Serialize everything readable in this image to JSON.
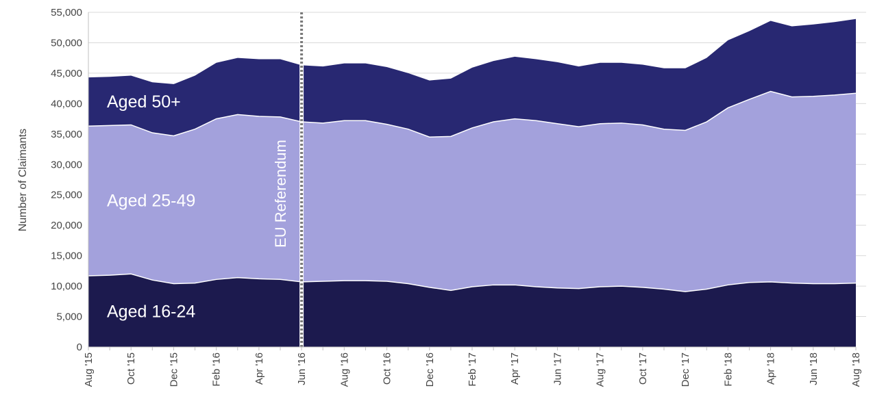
{
  "chart_data": {
    "type": "area",
    "stacked": true,
    "title": "",
    "xlabel": "",
    "ylabel": "Number of Claimants",
    "ylim": [
      0,
      55000
    ],
    "yticks": [
      0,
      5000,
      10000,
      15000,
      20000,
      25000,
      30000,
      35000,
      40000,
      45000,
      50000,
      55000
    ],
    "ytick_labels": [
      "0",
      "5,000",
      "10,000",
      "15,000",
      "20,000",
      "25,000",
      "30,000",
      "35,000",
      "40,000",
      "45,000",
      "50,000",
      "55,000"
    ],
    "x": [
      "Aug '15",
      "Sep '15",
      "Oct '15",
      "Nov '15",
      "Dec '15",
      "Jan '16",
      "Feb '16",
      "Mar '16",
      "Apr '16",
      "May '16",
      "Jun '16",
      "Jul '16",
      "Aug '16",
      "Sep '16",
      "Oct '16",
      "Nov '16",
      "Dec '16",
      "Jan '17",
      "Feb '17",
      "Mar '17",
      "Apr '17",
      "May '17",
      "Jun '17",
      "Jul '17",
      "Aug '17",
      "Sep '17",
      "Oct '17",
      "Nov '17",
      "Dec '17",
      "Jan '18",
      "Feb '18",
      "Mar '18",
      "Apr '18",
      "May '18",
      "Jun '18",
      "Jul '18",
      "Aug '18"
    ],
    "xtick_labels": [
      "Aug '15",
      "Oct '15",
      "Dec '15",
      "Feb '16",
      "Apr '16",
      "Jun '16",
      "Aug '16",
      "Oct '16",
      "Dec '16",
      "Feb '17",
      "Apr '17",
      "Jun '17",
      "Aug '17",
      "Oct '17",
      "Dec '17",
      "Feb '18",
      "Apr '18",
      "Jun '18",
      "Aug '18"
    ],
    "series": [
      {
        "name": "Aged 16-24",
        "color": "#1c1a4e",
        "values": [
          11700,
          11800,
          12000,
          11000,
          10400,
          10500,
          11100,
          11400,
          11200,
          11100,
          10700,
          10800,
          10900,
          10900,
          10800,
          10400,
          9800,
          9300,
          9900,
          10200,
          10200,
          9900,
          9700,
          9600,
          9900,
          10000,
          9800,
          9500,
          9100,
          9500,
          10200,
          10600,
          10700,
          10500,
          10400,
          10400,
          10500
        ]
      },
      {
        "name": "Aged 25-49",
        "color": "#a3a1dc",
        "values": [
          24600,
          24600,
          24500,
          24200,
          24300,
          25300,
          26400,
          26800,
          26700,
          26700,
          26300,
          26000,
          26300,
          26300,
          25800,
          25400,
          24700,
          25300,
          26100,
          26800,
          27300,
          27300,
          27000,
          26600,
          26800,
          26800,
          26700,
          26300,
          26500,
          27500,
          29100,
          30100,
          31300,
          30600,
          30800,
          31000,
          31200
        ]
      },
      {
        "name": "Aged 50+",
        "color": "#282872",
        "values": [
          8000,
          8000,
          8100,
          8300,
          8500,
          8800,
          9200,
          9300,
          9400,
          9500,
          9300,
          9300,
          9400,
          9400,
          9400,
          9200,
          9300,
          9500,
          9900,
          10000,
          10200,
          10100,
          10100,
          9900,
          10000,
          9900,
          9900,
          10000,
          10200,
          10500,
          11100,
          11200,
          11600,
          11600,
          11800,
          12000,
          12200
        ]
      }
    ],
    "annotation": {
      "label": "EU Referendum",
      "x": "Jun '16",
      "style": "dashed-vertical-line"
    },
    "grid": {
      "horizontal": true,
      "vertical": false,
      "color": "#d9d9d9"
    },
    "legend": "inline-labels"
  }
}
